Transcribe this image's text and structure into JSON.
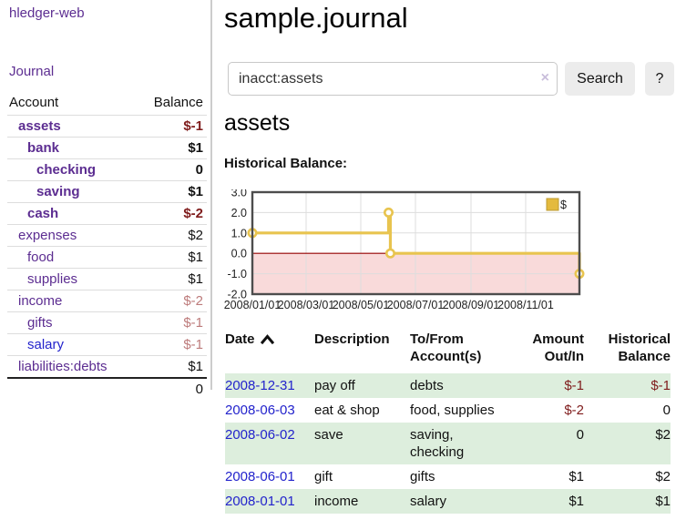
{
  "app": {
    "title": "hledger-web"
  },
  "sidebar": {
    "journal_link": "Journal",
    "accounts": {
      "headers": {
        "account": "Account",
        "balance": "Balance"
      },
      "rows": [
        {
          "name": "assets",
          "balance": "$-1",
          "depth": 1,
          "bold": true,
          "neg": true
        },
        {
          "name": "bank",
          "balance": "$1",
          "depth": 2,
          "bold": true,
          "neg": false
        },
        {
          "name": "checking",
          "balance": "0",
          "depth": 3,
          "bold": true,
          "neg": false
        },
        {
          "name": "saving",
          "balance": "$1",
          "depth": 3,
          "bold": true,
          "neg": false
        },
        {
          "name": "cash",
          "balance": "$-2",
          "depth": 2,
          "bold": true,
          "neg": true
        },
        {
          "name": "expenses",
          "balance": "$2",
          "depth": 1,
          "bold": false,
          "neg": false
        },
        {
          "name": "food",
          "balance": "$1",
          "depth": 2,
          "bold": false,
          "neg": false
        },
        {
          "name": "supplies",
          "balance": "$1",
          "depth": 2,
          "bold": false,
          "neg": false
        },
        {
          "name": "income",
          "balance": "$-2",
          "depth": 1,
          "bold": false,
          "neg": true
        },
        {
          "name": "gifts",
          "balance": "$-1",
          "depth": 2,
          "bold": false,
          "neg": true
        },
        {
          "name": "salary",
          "balance": "$-1",
          "depth": 2,
          "bold": false,
          "neg": true,
          "link_style": "blue"
        },
        {
          "name": "liabilities:debts",
          "balance": "$1",
          "depth": 1,
          "bold": false,
          "neg": false
        }
      ],
      "total": "0"
    }
  },
  "header": {
    "title": "sample.journal"
  },
  "search": {
    "query": "inacct:assets",
    "clear_icon": "×",
    "button": "Search",
    "help_button": "?"
  },
  "account_page": {
    "heading": "assets",
    "chart_label": "Historical Balance:"
  },
  "chart_data": {
    "type": "line",
    "title": "Historical Balance:",
    "series": [
      {
        "name": "$",
        "interpolation": "step-after",
        "points": [
          {
            "date": "2008-01-01",
            "value": 1
          },
          {
            "date": "2008-06-01",
            "value": 2
          },
          {
            "date": "2008-06-03",
            "value": 0
          },
          {
            "date": "2008-12-31",
            "value": -1
          }
        ]
      }
    ],
    "x_range": [
      "2008-01-01",
      "2008-12-31"
    ],
    "x_ticks": [
      "2008/01/01",
      "2008/03/01",
      "2008/05/01",
      "2008/07/01",
      "2008/09/01",
      "2008/11/01"
    ],
    "y_ticks": [
      3.0,
      2.0,
      1.0,
      0.0,
      -1.0,
      -2.0
    ],
    "ylim": [
      -2,
      3
    ],
    "grid": true,
    "legend_position": "top-right",
    "line_color": "#e8c44f",
    "legend_fill": "#e4ba3e",
    "legend_border": "#bd9b31",
    "negative_region_fill": "#f9dada",
    "zero_line_color": "#990000",
    "grid_color": "#ddd",
    "border_color": "#4d4d4d"
  },
  "register": {
    "columns": [
      {
        "id": "date",
        "label": "Date",
        "label2": "",
        "align": "left",
        "sorted": true
      },
      {
        "id": "description",
        "label": "Description",
        "label2": "",
        "align": "left",
        "sorted": false
      },
      {
        "id": "accounts",
        "label": "To/From",
        "label2": "Account(s)",
        "align": "left",
        "sorted": false
      },
      {
        "id": "amount",
        "label": "Amount",
        "label2": "Out/In",
        "align": "right",
        "sorted": false
      },
      {
        "id": "balance",
        "label": "Historical",
        "label2": "Balance",
        "align": "right",
        "sorted": false
      }
    ],
    "rows": [
      {
        "date": "2008-12-31",
        "description": "pay off",
        "accounts": "debts",
        "amount": "$-1",
        "balance": "$-1"
      },
      {
        "date": "2008-06-03",
        "description": "eat & shop",
        "accounts": "food, supplies",
        "amount": "$-2",
        "balance": "0"
      },
      {
        "date": "2008-06-02",
        "description": "save",
        "accounts": "saving, checking",
        "amount": "0",
        "balance": "$2"
      },
      {
        "date": "2008-06-01",
        "description": "gift",
        "accounts": "gifts",
        "amount": "$1",
        "balance": "$2"
      },
      {
        "date": "2008-01-01",
        "description": "income",
        "accounts": "salary",
        "amount": "$1",
        "balance": "$1"
      }
    ]
  },
  "colors": {
    "link_purple": "#5c2d91",
    "link_blue": "#2323cc",
    "negative_bold": "#7f1c1c",
    "negative_faded": "#bd7b7b",
    "row_green": "#ddeedd",
    "chart_gold": "#e8c44f",
    "chart_pink": "#f9dada"
  }
}
